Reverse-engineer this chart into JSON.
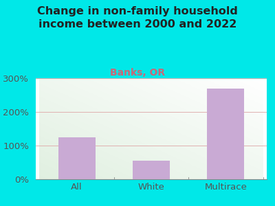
{
  "title": "Change in non-family household\nincome between 2000 and 2022",
  "subtitle": "Banks, OR",
  "categories": [
    "All",
    "White",
    "Multirace"
  ],
  "values": [
    125,
    55,
    270
  ],
  "bar_color": "#c9aad4",
  "background_color": "#00e8e8",
  "plot_bg_color": "#eef5e8",
  "grid_color": "#e0b0b0",
  "title_color": "#222222",
  "subtitle_color": "#cc6677",
  "tick_color": "#555555",
  "ylim": [
    0,
    300
  ],
  "yticks": [
    0,
    100,
    200,
    300
  ],
  "title_fontsize": 11.5,
  "subtitle_fontsize": 10,
  "tick_fontsize": 9.5
}
